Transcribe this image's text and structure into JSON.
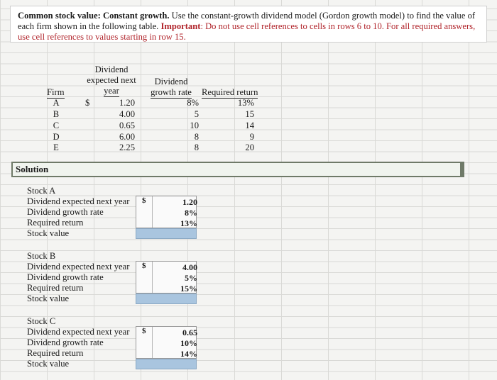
{
  "instructions": {
    "title": "Common stock value: Constant growth.",
    "body": " Use the constant-growth dividend model (Gordon growth model) to find the value of each firm shown in the following table. ",
    "important_label": "Important",
    "important_text": ": Do not use cell references to cells in rows 6 to 10. For all required answers, use cell references to values starting in row 15."
  },
  "table": {
    "headers": {
      "firm": "Firm",
      "dividend_line1": "Dividend",
      "dividend_line2": "expected next",
      "dividend_line3": "year",
      "growth_line1": "Dividend",
      "growth_line2": "growth rate",
      "required": "Required return"
    },
    "currency": "$",
    "rows": [
      {
        "firm": "A",
        "dividend": "1.20",
        "growth": "8%",
        "required": "13%"
      },
      {
        "firm": "B",
        "dividend": "4.00",
        "growth": "5",
        "required": "15"
      },
      {
        "firm": "C",
        "dividend": "0.65",
        "growth": "10",
        "required": "14"
      },
      {
        "firm": "D",
        "dividend": "6.00",
        "growth": "8",
        "required": "9"
      },
      {
        "firm": "E",
        "dividend": "2.25",
        "growth": "8",
        "required": "20"
      }
    ]
  },
  "solution": {
    "label": "Solution",
    "blocks": [
      {
        "title": "Stock A",
        "div_label": "Dividend expected next year",
        "growth_label": "Dividend growth rate",
        "req_label": "Required return",
        "value_label": "Stock value",
        "currency": "$",
        "dividend": "1.20",
        "growth": "8%",
        "required": "13%"
      },
      {
        "title": "Stock B",
        "div_label": "Dividend expected next year",
        "growth_label": "Dividend growth rate",
        "req_label": "Required return",
        "value_label": "Stock value",
        "currency": "$",
        "dividend": "4.00",
        "growth": "5%",
        "required": "15%"
      },
      {
        "title": "Stock C",
        "div_label": "Dividend expected next year",
        "growth_label": "Dividend growth rate",
        "req_label": "Required return",
        "value_label": "Stock value",
        "currency": "$",
        "dividend": "0.65",
        "growth": "10%",
        "required": "14%"
      }
    ]
  },
  "colors": {
    "answer_cell": "#a9c5df",
    "solution_border": "#6f7a68",
    "important": "#b0232a"
  }
}
